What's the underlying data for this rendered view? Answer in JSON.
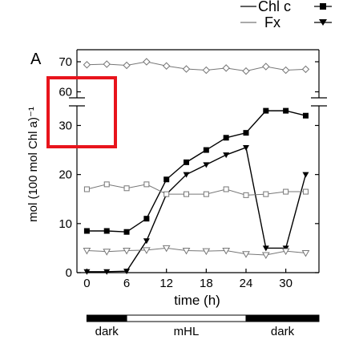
{
  "panel_label": "A",
  "legend": {
    "chl_c": "Chl c",
    "fx": "Fx"
  },
  "chart_data": {
    "type": "line",
    "title": "",
    "xlabel": "time (h)",
    "ylabel": "mol (100 mol Chl a)⁻¹",
    "xlim": [
      -1.5,
      35
    ],
    "xticks": [
      "0",
      "6",
      "12",
      "18",
      "24",
      "30"
    ],
    "yticks_lower": [
      "0",
      "10",
      "20",
      "30"
    ],
    "yticks_upper": [
      "60",
      "70"
    ],
    "axis_break": {
      "from": 34,
      "to": 58
    },
    "ylim": [
      0,
      74
    ],
    "series": [
      {
        "name": "Chl c",
        "marker": "square-filled",
        "x": [
          0,
          3,
          6,
          9,
          12,
          15,
          18,
          21,
          24,
          27,
          30,
          33
        ],
        "y": [
          8.5,
          8.5,
          8.3,
          11,
          19,
          22.5,
          25,
          27.5,
          28.5,
          33,
          33,
          32
        ]
      },
      {
        "name": "Fx",
        "marker": "diamond-open",
        "x": [
          0,
          3,
          6,
          9,
          12,
          15,
          18,
          21,
          24,
          27,
          30,
          33
        ],
        "y": [
          69,
          69.2,
          68.8,
          70,
          68.6,
          67.6,
          67.2,
          67.9,
          66.9,
          68.4,
          67.2,
          67.5
        ]
      },
      {
        "name": "",
        "marker": "triangle-down-filled",
        "x": [
          0,
          3,
          6,
          9,
          12,
          15,
          18,
          21,
          24,
          27,
          30,
          33
        ],
        "y": [
          0.2,
          0.2,
          0.3,
          6.5,
          16,
          20,
          22,
          24,
          25.5,
          5,
          5,
          20
        ]
      },
      {
        "name": "",
        "marker": "square-open",
        "x": [
          0,
          3,
          6,
          9,
          12,
          15,
          18,
          21,
          24,
          27,
          30,
          33
        ],
        "y": [
          17,
          18,
          17.2,
          18,
          16,
          16,
          16,
          17,
          15.8,
          16,
          16.5,
          16.5
        ]
      },
      {
        "name": "",
        "marker": "triangle-down-open",
        "x": [
          0,
          3,
          6,
          9,
          12,
          15,
          18,
          21,
          24,
          27,
          30,
          33
        ],
        "y": [
          4.5,
          4.3,
          4.5,
          4.6,
          5,
          4.5,
          4.4,
          4.5,
          3.8,
          3.6,
          4.4,
          4
        ]
      }
    ],
    "light_bar": {
      "segments": [
        {
          "label": "dark",
          "from": 0,
          "to": 6,
          "fill": "#000000"
        },
        {
          "label": "mHL",
          "from": 6,
          "to": 24,
          "fill": "#ffffff"
        },
        {
          "label": "dark",
          "from": 24,
          "to": 35,
          "fill": "#000000"
        }
      ]
    }
  }
}
